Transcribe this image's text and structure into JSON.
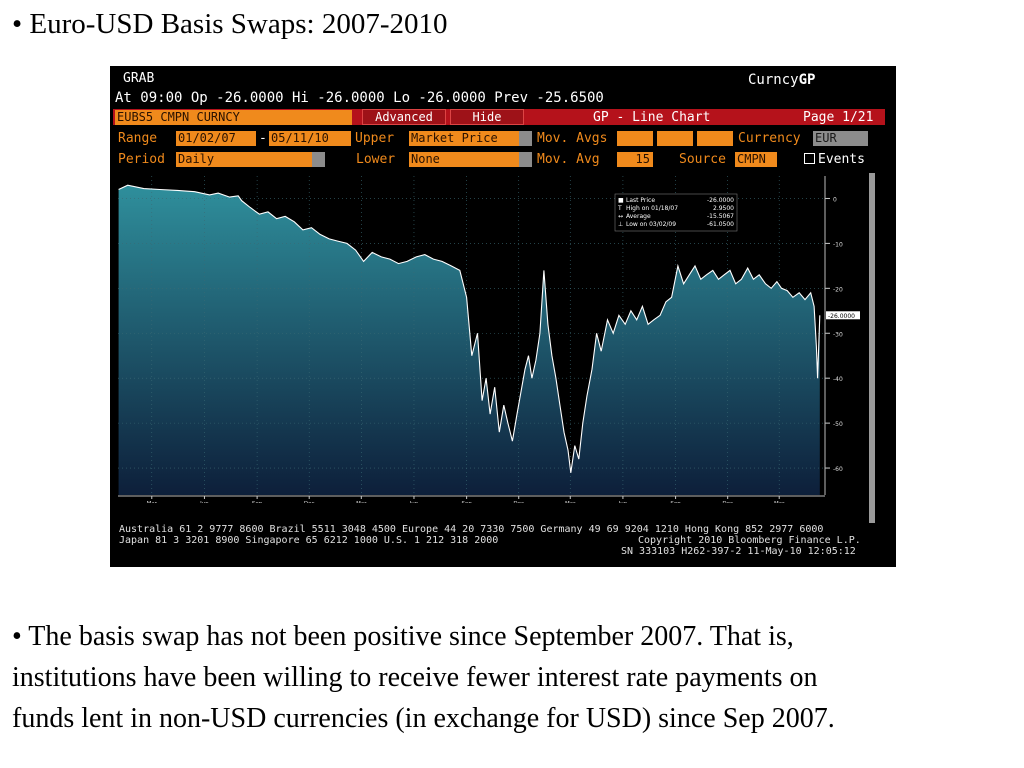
{
  "slide": {
    "title": "• Euro-USD Basis Swaps: 2007-2010",
    "caption_lines": [
      "• The basis swap has not been positive since September 2007. That is,",
      "institutions have been willing to receive fewer interest rate payments on",
      "funds lent in non-USD currencies (in exchange for USD) since Sep 2007."
    ]
  },
  "terminal": {
    "screen": "GRAB",
    "brand_prefix": "Curncy",
    "brand_suffix": "GP",
    "quote_line": "At 09:00 Op -26.0000  Hi -26.0000  Lo -26.0000  Prev -25.6500",
    "ticker": "EUBS5 CMPN CURNCY",
    "advanced_label": "Advanced",
    "hide_label": "Hide",
    "chart_type_label": "GP - Line Chart",
    "page_label": "Page 1/21",
    "range_label": "Range",
    "range_start": "01/02/07",
    "range_sep": "-",
    "range_end": "05/11/10",
    "upper_label": "Upper",
    "upper_value": "Market Price",
    "mov_avgs_label": "Mov. Avgs",
    "currency_label": "Currency",
    "currency_value": "EUR",
    "period_label": "Period",
    "period_value": "Daily",
    "lower_label": "Lower",
    "lower_value": "None",
    "mov_avg_label": "Mov. Avg",
    "mov_avg_value": "15",
    "source_label": "Source",
    "source_value": "CMPN",
    "events_label": "Events",
    "footer_line1": "Australia 61 2 9777 8600 Brazil 5511 3048 4500 Europe 44 20 7330 7500 Germany 49 69 9204 1210 Hong Kong 852 2977 6000",
    "footer_line2a": "Japan 81 3 3201 8900      Singapore 65 6212 1000       U.S. 1 212 318 2000",
    "footer_line2b": "Copyright 2010 Bloomberg Finance L.P.",
    "footer_line3": "SN 333103 H262-397-2 11-May-10 12:05:12"
  },
  "colors": {
    "area_top": "#2f8f9c",
    "area_bottom": "#0d1f3a",
    "line": "#ffffff",
    "orange": "#f08a1c",
    "red": "#b5121b"
  },
  "chart_data": {
    "type": "area",
    "title": "",
    "xlabel": "",
    "ylabel": "",
    "ylim": [
      -66,
      5
    ],
    "y_ticks": [
      0,
      -10,
      -20,
      -30,
      -40,
      -50,
      -60
    ],
    "y_tick_labels": [
      "0",
      "-10",
      "-20",
      "-30",
      "-40",
      "-50",
      "-60"
    ],
    "x_month_ticks": [
      "Mar",
      "Jun",
      "Sep",
      "Dec",
      "Mar",
      "Jun",
      "Sep",
      "Dec",
      "Mar",
      "Jun",
      "Sep",
      "Dec",
      "Mar"
    ],
    "x_month_tick_dates": [
      "2007-03-01",
      "2007-06-01",
      "2007-09-01",
      "2007-12-01",
      "2008-03-01",
      "2008-06-01",
      "2008-09-01",
      "2008-12-01",
      "2009-03-01",
      "2009-06-01",
      "2009-09-01",
      "2009-12-01",
      "2010-03-01"
    ],
    "x_year_labels": [
      "2007",
      "2008",
      "2009",
      "2010"
    ],
    "x_year_label_dates": [
      "2007-02-01",
      "2008-02-01",
      "2009-02-01",
      "2010-02-01"
    ],
    "xlim": [
      "2007-01-01",
      "2010-05-20"
    ],
    "last_price_label": "-26.0000",
    "last_price": -26.0,
    "legend": {
      "placement": "top-right",
      "entries": [
        {
          "label": "Last Price",
          "value": "-26.0000"
        },
        {
          "label": "High on 01/18/07",
          "value": "2.9500"
        },
        {
          "label": "Average",
          "value": "-15.5067"
        },
        {
          "label": "Low on 03/02/09",
          "value": "-61.0500"
        }
      ]
    },
    "series": [
      {
        "name": "Last Price",
        "x": [
          "2007-01-02",
          "2007-01-18",
          "2007-02-15",
          "2007-03-15",
          "2007-04-15",
          "2007-05-15",
          "2007-06-10",
          "2007-06-25",
          "2007-07-15",
          "2007-07-30",
          "2007-08-05",
          "2007-08-20",
          "2007-09-05",
          "2007-09-20",
          "2007-10-05",
          "2007-10-20",
          "2007-11-05",
          "2007-11-20",
          "2007-12-05",
          "2007-12-20",
          "2008-01-05",
          "2008-01-20",
          "2008-02-05",
          "2008-02-20",
          "2008-03-05",
          "2008-03-20",
          "2008-04-05",
          "2008-04-20",
          "2008-05-05",
          "2008-05-20",
          "2008-06-05",
          "2008-06-20",
          "2008-07-05",
          "2008-07-20",
          "2008-08-05",
          "2008-08-20",
          "2008-09-01",
          "2008-09-10",
          "2008-09-20",
          "2008-09-28",
          "2008-10-05",
          "2008-10-12",
          "2008-10-20",
          "2008-10-28",
          "2008-11-05",
          "2008-11-12",
          "2008-11-20",
          "2008-11-28",
          "2008-12-05",
          "2008-12-12",
          "2008-12-18",
          "2008-12-24",
          "2008-12-31",
          "2009-01-07",
          "2009-01-14",
          "2009-01-21",
          "2009-01-28",
          "2009-02-04",
          "2009-02-11",
          "2009-02-18",
          "2009-02-25",
          "2009-03-02",
          "2009-03-09",
          "2009-03-16",
          "2009-03-23",
          "2009-03-30",
          "2009-04-08",
          "2009-04-16",
          "2009-04-24",
          "2009-05-05",
          "2009-05-15",
          "2009-05-25",
          "2009-06-05",
          "2009-06-15",
          "2009-06-25",
          "2009-07-05",
          "2009-07-15",
          "2009-07-25",
          "2009-08-05",
          "2009-08-15",
          "2009-08-25",
          "2009-09-05",
          "2009-09-15",
          "2009-09-25",
          "2009-10-05",
          "2009-10-15",
          "2009-10-25",
          "2009-11-05",
          "2009-11-15",
          "2009-11-25",
          "2009-12-05",
          "2009-12-15",
          "2009-12-25",
          "2010-01-05",
          "2010-01-15",
          "2010-01-25",
          "2010-02-05",
          "2010-02-15",
          "2010-02-25",
          "2010-03-05",
          "2010-03-15",
          "2010-03-25",
          "2010-04-05",
          "2010-04-15",
          "2010-04-25",
          "2010-05-01",
          "2010-05-05",
          "2010-05-07",
          "2010-05-11"
        ],
        "values": [
          2.0,
          2.95,
          2.2,
          2.0,
          1.8,
          1.5,
          0.8,
          1.2,
          0.3,
          0.6,
          -0.5,
          -2.0,
          -3.5,
          -3.0,
          -4.5,
          -4.0,
          -5.2,
          -7.0,
          -6.5,
          -8.0,
          -9.0,
          -9.5,
          -10.0,
          -11.5,
          -14.0,
          -12.0,
          -13.0,
          -13.5,
          -14.5,
          -14.0,
          -13.0,
          -12.5,
          -13.5,
          -14.0,
          -15.0,
          -16.0,
          -22.0,
          -35.0,
          -30.0,
          -45.0,
          -40.0,
          -48.0,
          -42.0,
          -52.0,
          -46.0,
          -50.0,
          -54.0,
          -48.0,
          -43.0,
          -38.0,
          -35.0,
          -40.0,
          -36.0,
          -30.0,
          -16.0,
          -28.0,
          -35.0,
          -40.0,
          -46.0,
          -52.0,
          -56.0,
          -61.05,
          -55.0,
          -58.0,
          -50.0,
          -44.0,
          -38.0,
          -30.0,
          -34.0,
          -27.0,
          -30.0,
          -26.0,
          -28.0,
          -25.0,
          -27.0,
          -24.0,
          -28.0,
          -27.0,
          -26.0,
          -23.0,
          -22.0,
          -15.0,
          -19.0,
          -17.0,
          -15.0,
          -18.0,
          -17.0,
          -16.0,
          -18.0,
          -17.0,
          -16.0,
          -19.0,
          -18.0,
          -15.5,
          -18.0,
          -17.0,
          -19.0,
          -20.0,
          -18.5,
          -20.0,
          -20.5,
          -22.0,
          -21.0,
          -22.5,
          -21.0,
          -24.0,
          -33.0,
          -40.0,
          -26.0
        ]
      }
    ]
  }
}
